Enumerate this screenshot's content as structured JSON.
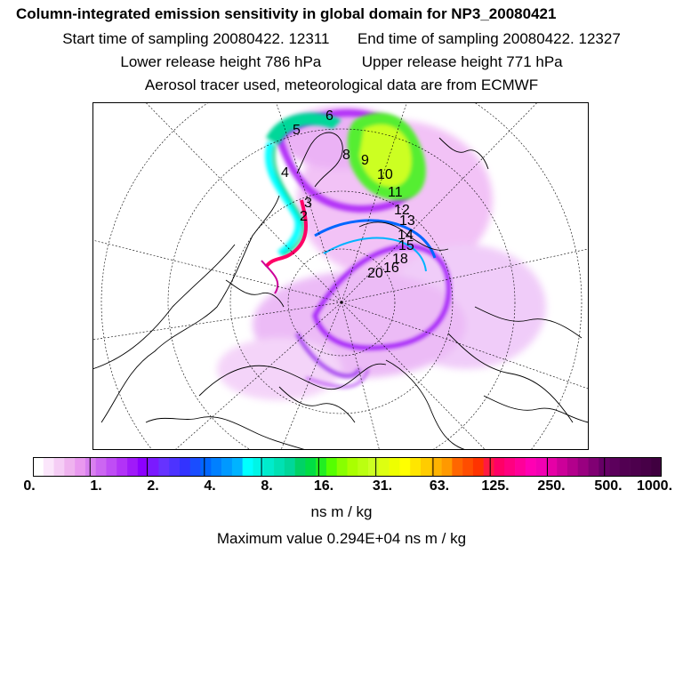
{
  "title": "Column-integrated emission sensitivity in global domain for NP3_20080421",
  "sampling": {
    "start_label": "Start time of sampling",
    "start_value": "20080422. 12311",
    "end_label": "End time of sampling",
    "end_value": "20080422. 12327"
  },
  "release": {
    "lower_label": "Lower release height",
    "lower_value": "786 hPa",
    "upper_label": "Upper release height",
    "upper_value": "771 hPa"
  },
  "tracer_note": "Aerosol tracer used, meteorological data are from ECMWF",
  "colorbar": {
    "ticks": [
      "0.",
      "1.",
      "2.",
      "4.",
      "8.",
      "16.",
      "31.",
      "63.",
      "125.",
      "250.",
      "500.",
      "1000."
    ],
    "colors": [
      "#ffffff",
      "#fbe6fb",
      "#f5cdf5",
      "#efb3ef",
      "#e999ef",
      "#d980f0",
      "#cc66f2",
      "#bf4df5",
      "#b233f7",
      "#a01af9",
      "#8c00ff",
      "#7a1aff",
      "#6633ff",
      "#4d33ff",
      "#3333ff",
      "#1a4dff",
      "#0066ff",
      "#0080ff",
      "#0099ff",
      "#00b3ff",
      "#00ffff",
      "#00f5e6",
      "#00ebcc",
      "#00e1b3",
      "#00d799",
      "#00d266",
      "#00dd44",
      "#22ee22",
      "#55ff00",
      "#88ff00",
      "#aaff00",
      "#bbff11",
      "#ccff22",
      "#ddff11",
      "#eeff00",
      "#ffff00",
      "#ffe600",
      "#ffcc00",
      "#ffb300",
      "#ff9900",
      "#ff6600",
      "#ff4d00",
      "#ff3300",
      "#ff1a40",
      "#ff0066",
      "#ff0080",
      "#ff0099",
      "#ff00b3",
      "#f200b3",
      "#e600a6",
      "#cc0099",
      "#b3008c",
      "#990080",
      "#800073",
      "#660066",
      "#5c005c",
      "#520052",
      "#4d004d",
      "#470047",
      "#400040"
    ]
  },
  "units": "ns m / kg",
  "maximum": {
    "label": "Maximum value",
    "value": "0.294E+04",
    "units": "ns m / kg"
  },
  "trajectory_labels": [
    "5",
    "6",
    "4",
    "8",
    "9",
    "10",
    "11",
    "3",
    "2",
    "12",
    "13",
    "14",
    "15",
    "18",
    "16",
    "20"
  ]
}
